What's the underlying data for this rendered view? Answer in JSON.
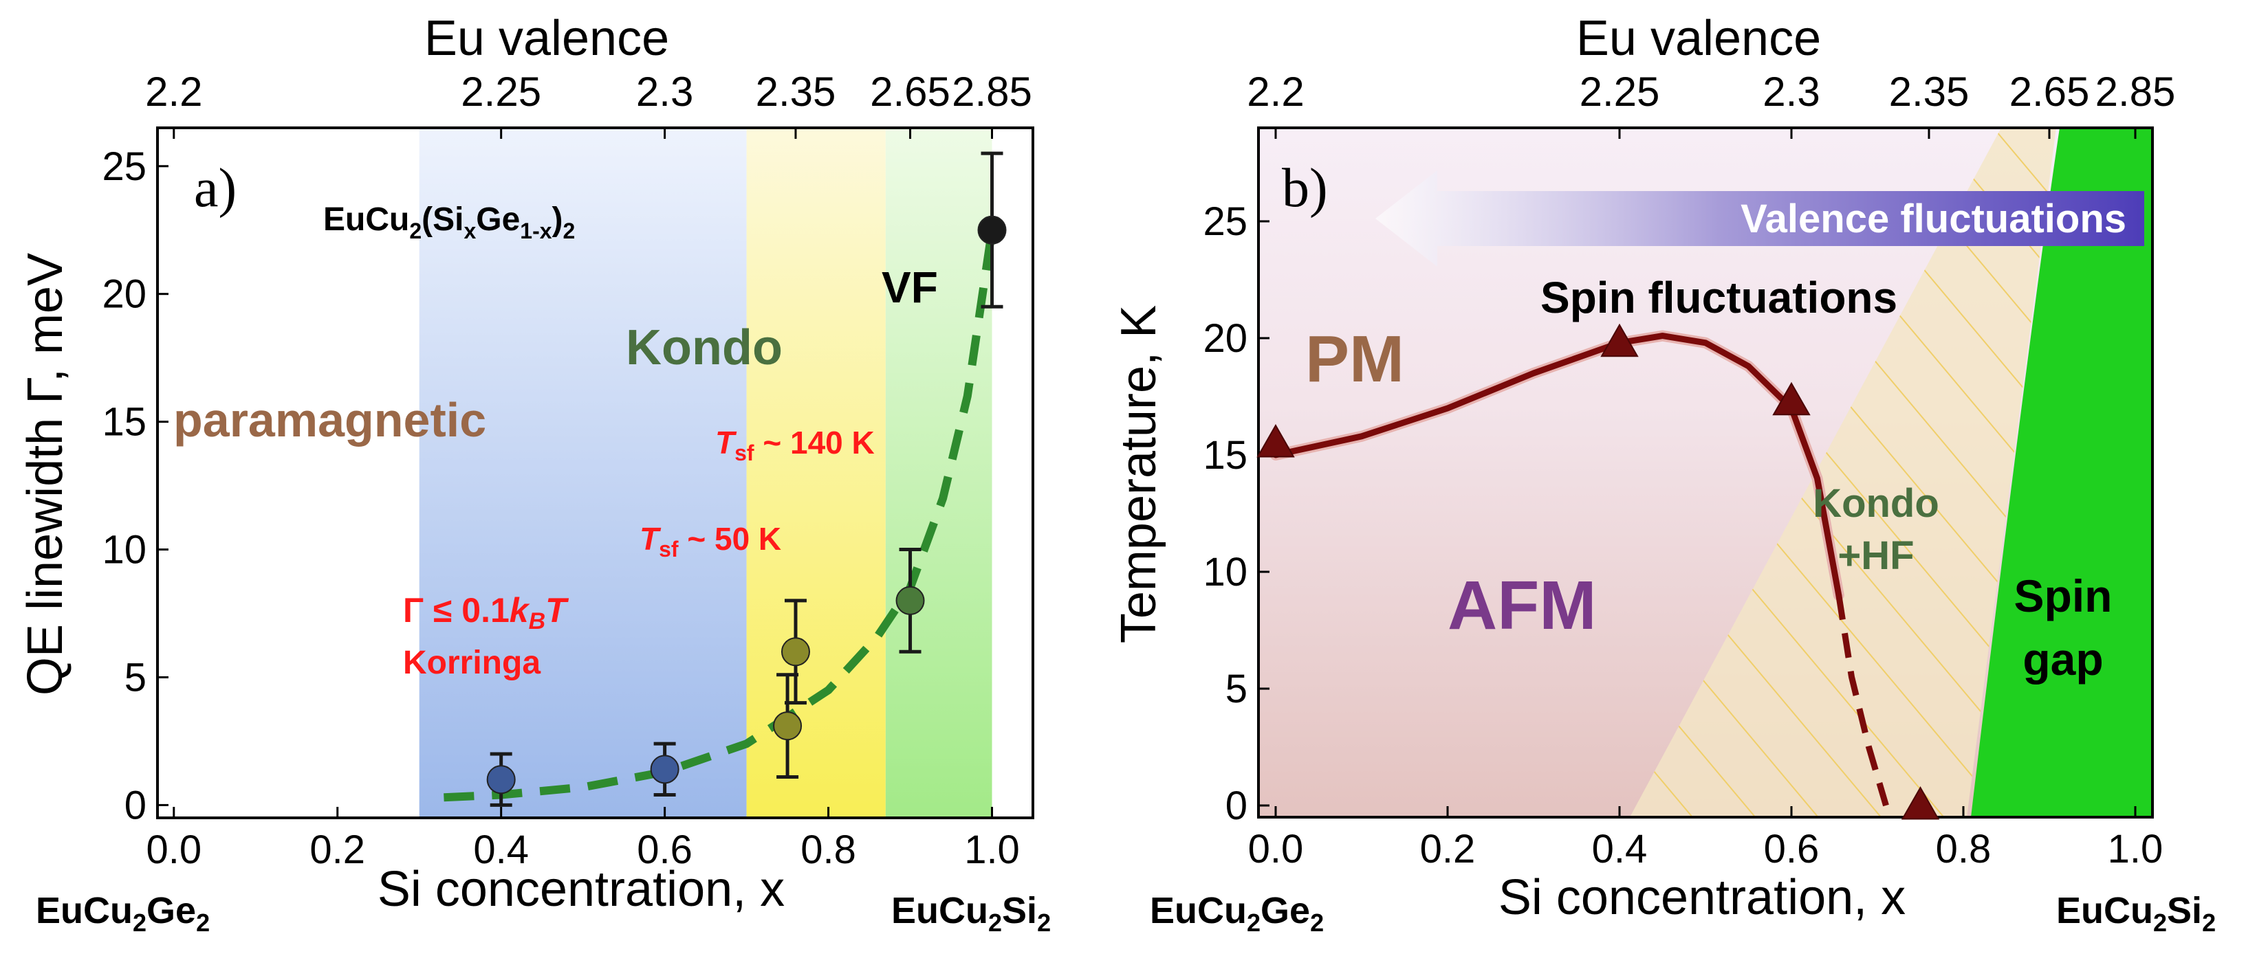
{
  "chart_data": [
    {
      "panel": "a)",
      "type": "scatter",
      "title": "EuCu2(SixGe1-x)2",
      "title_parts": {
        "a": "EuCu",
        "b": "2",
        "c": "(Si",
        "d": "x",
        "e": "Ge",
        "f": "1-x",
        "g": ")",
        "h": "2"
      },
      "xlabel": "Si concentration, x",
      "ylabel": "QE linewidth Γ, meV",
      "top_axis_label": "Eu valence",
      "xlim": [
        -0.02,
        1.05
      ],
      "ylim": [
        -0.5,
        26.5
      ],
      "x_ticks": [
        0.0,
        0.2,
        0.4,
        0.6,
        0.8,
        1.0
      ],
      "x_tick_labels": [
        "0.0",
        "0.2",
        "0.4",
        "0.6",
        "0.8",
        "1.0"
      ],
      "y_ticks": [
        0,
        5,
        10,
        15,
        20,
        25
      ],
      "y_tick_labels": [
        "0",
        "5",
        "10",
        "15",
        "20",
        "25"
      ],
      "top_ticks": [
        {
          "x": 0.0,
          "label": "2.2"
        },
        {
          "x": 0.4,
          "label": "2.25"
        },
        {
          "x": 0.6,
          "label": "2.3"
        },
        {
          "x": 0.76,
          "label": "2.35"
        },
        {
          "x": 0.9,
          "label": "2.65"
        },
        {
          "x": 1.0,
          "label": "2.85"
        }
      ],
      "end_labels": [
        {
          "parts": [
            "EuCu",
            "2",
            "Ge",
            "2"
          ]
        },
        {
          "parts": [
            "EuCu",
            "2",
            "Si",
            "2"
          ]
        }
      ],
      "points": [
        {
          "x": 0.4,
          "y": 1.0,
          "err": 1.0,
          "color": "#3d5a98"
        },
        {
          "x": 0.6,
          "y": 1.4,
          "err": 1.0,
          "color": "#3d5a98"
        },
        {
          "x": 0.75,
          "y": 3.1,
          "err": 2.0,
          "color": "#8a8a2a"
        },
        {
          "x": 0.76,
          "y": 6.0,
          "err": 2.0,
          "color": "#8a8a2a"
        },
        {
          "x": 0.9,
          "y": 8.0,
          "err": 2.0,
          "color": "#4a7a3a"
        },
        {
          "x": 1.0,
          "y": 22.5,
          "err": 3.0,
          "color": "#1a1a1a"
        }
      ],
      "fit_curve": {
        "style": "dashed",
        "color": "#2e8b2e",
        "x": [
          0.33,
          0.4,
          0.5,
          0.6,
          0.7,
          0.8,
          0.86,
          0.9,
          0.94,
          0.97,
          1.0
        ],
        "y": [
          0.3,
          0.4,
          0.7,
          1.3,
          2.4,
          4.5,
          6.6,
          8.5,
          12.0,
          16.0,
          22.5
        ]
      },
      "regions": [
        {
          "x0": 0.3,
          "x1": 0.7,
          "color": "#a9c2ec"
        },
        {
          "x0": 0.7,
          "x1": 0.87,
          "color": "#f6ef6e"
        },
        {
          "x0": 0.87,
          "x1": 1.0,
          "color": "#a6e98e"
        }
      ],
      "annotations": [
        {
          "text": "paramagnetic",
          "color": "#9a6848"
        },
        {
          "text": "Kondo",
          "color": "#4a7040"
        },
        {
          "text": "VF",
          "color": "#000000"
        },
        {
          "a": "T",
          "b": "sf",
          "c": " ~ 140 K",
          "color": "#ff1a1a"
        },
        {
          "a": "T",
          "b": "sf",
          "c": " ~ 50 K",
          "color": "#ff1a1a"
        },
        {
          "a": "Γ ≤ 0.1",
          "b": "k",
          "c": "B",
          "d": "T",
          "color": "#ff1a1a"
        },
        {
          "text": "Korringa",
          "color": "#ff1a1a"
        }
      ]
    },
    {
      "panel": "b)",
      "type": "line",
      "xlabel": "Si concentration, x",
      "ylabel": "Temperature, K",
      "top_axis_label": "Eu valence",
      "xlim": [
        -0.02,
        1.02
      ],
      "ylim": [
        -0.5,
        29
      ],
      "x_ticks": [
        0.0,
        0.2,
        0.4,
        0.6,
        0.8,
        1.0
      ],
      "x_tick_labels": [
        "0.0",
        "0.2",
        "0.4",
        "0.6",
        "0.8",
        "1.0"
      ],
      "y_ticks": [
        0,
        5,
        10,
        15,
        20,
        25
      ],
      "y_tick_labels": [
        "0",
        "5",
        "10",
        "15",
        "20",
        "25"
      ],
      "top_ticks": [
        {
          "x": 0.0,
          "label": "2.2"
        },
        {
          "x": 0.4,
          "label": "2.25"
        },
        {
          "x": 0.6,
          "label": "2.3"
        },
        {
          "x": 0.76,
          "label": "2.35"
        },
        {
          "x": 0.9,
          "label": "2.65"
        },
        {
          "x": 1.0,
          "label": "2.85"
        }
      ],
      "end_labels": [
        {
          "parts": [
            "EuCu",
            "2",
            "Ge",
            "2"
          ]
        },
        {
          "parts": [
            "EuCu",
            "2",
            "Si",
            "2"
          ]
        }
      ],
      "neel_curve": {
        "color": "#7a0a0a",
        "x": [
          0.0,
          0.1,
          0.2,
          0.3,
          0.4,
          0.45,
          0.5,
          0.55,
          0.6,
          0.63,
          0.655
        ],
        "y": [
          15.0,
          15.8,
          17.0,
          18.5,
          19.8,
          20.1,
          19.8,
          18.8,
          17.0,
          14.0,
          9.0
        ]
      },
      "neel_dashed": {
        "color": "#7a0a0a",
        "x": [
          0.655,
          0.67,
          0.69,
          0.71
        ],
        "y": [
          9.0,
          5.5,
          2.5,
          0.0
        ]
      },
      "markers": [
        {
          "x": 0.0,
          "y": 15.5
        },
        {
          "x": 0.4,
          "y": 19.8
        },
        {
          "x": 0.6,
          "y": 17.3
        },
        {
          "x": 0.75,
          "y": 0.0
        }
      ],
      "annotations": [
        {
          "text": "PM",
          "color": "#9a6848"
        },
        {
          "text": "AFM",
          "color": "#7a3a8a"
        },
        {
          "text": "Spin fluctuations",
          "color": "#000000"
        },
        {
          "text": "Valence fluctuations",
          "color": "#ffffff"
        },
        {
          "text": "Kondo",
          "color": "#4a7040"
        },
        {
          "text": "+HF",
          "color": "#4a7040"
        },
        {
          "text": "Spin",
          "color": "#000000"
        },
        {
          "text": "gap",
          "color": "#000000"
        }
      ]
    }
  ]
}
